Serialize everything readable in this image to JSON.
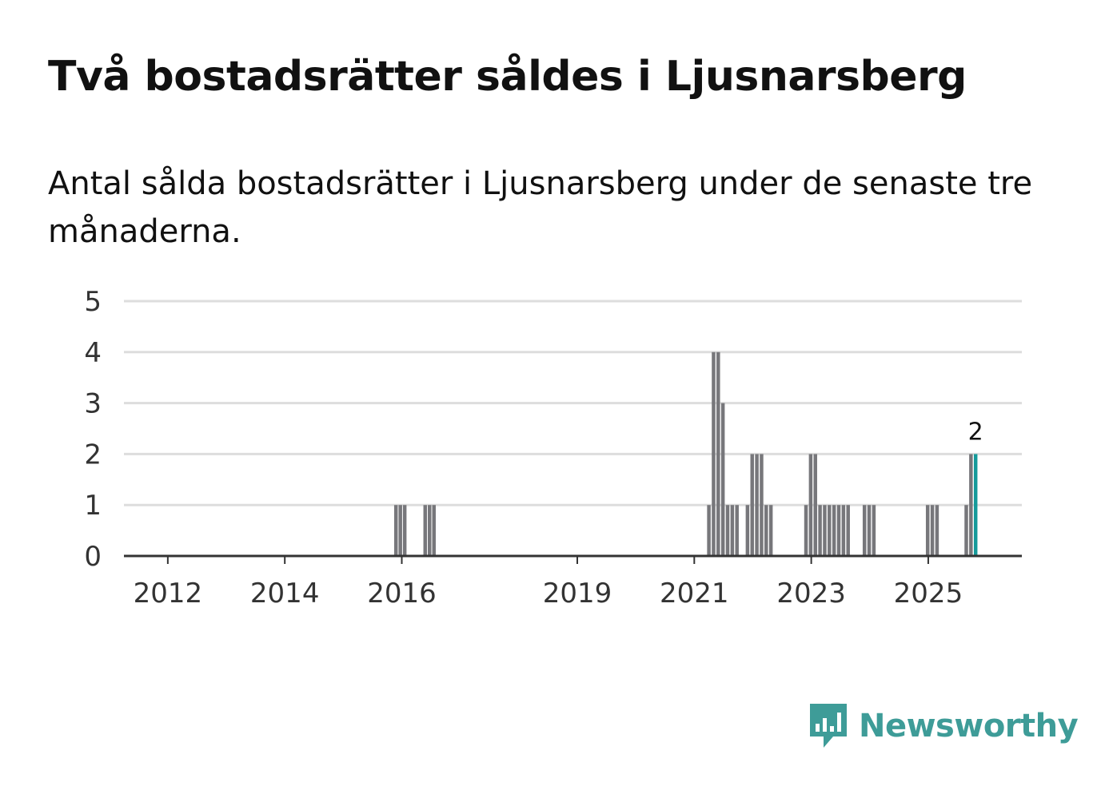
{
  "header": {
    "title": "Två bostadsrätter såldes i Ljusnarsberg",
    "subtitle": "Antal sålda bostadsrätter i Ljusnarsberg under de senaste tre månaderna."
  },
  "brand": {
    "name": "Newsworthy",
    "icon": "bar-chart-speech-bubble-icon",
    "color": "#3e9c98"
  },
  "colors": {
    "bar": "#77777b",
    "highlight": "#159a9a",
    "grid": "#dddddd",
    "axis": "#333333"
  },
  "chart_data": {
    "type": "bar",
    "title": "Två bostadsrätter såldes i Ljusnarsberg",
    "subtitle": "Antal sålda bostadsrätter i Ljusnarsberg under de senaste tre månaderna.",
    "xlabel": "",
    "ylabel": "",
    "ylim": [
      0,
      5
    ],
    "yticks": [
      "0",
      "1",
      "2",
      "3",
      "4",
      "5"
    ],
    "xticks": [
      "2012",
      "2014",
      "2016",
      "2019",
      "2021",
      "2023",
      "2025"
    ],
    "xtick_years": [
      2012,
      2014,
      2016,
      2019,
      2021,
      2023,
      2025
    ],
    "x_range_years": [
      2011.25,
      2026.6
    ],
    "bar_width_years": 0.0833,
    "grid": true,
    "bars": [
      {
        "year": 2015.9,
        "value": 1
      },
      {
        "year": 2015.975,
        "value": 1
      },
      {
        "year": 2016.05,
        "value": 1
      },
      {
        "year": 2016.4,
        "value": 1
      },
      {
        "year": 2016.475,
        "value": 1
      },
      {
        "year": 2016.55,
        "value": 1
      },
      {
        "year": 2021.25,
        "value": 1
      },
      {
        "year": 2021.33,
        "value": 4
      },
      {
        "year": 2021.41,
        "value": 4
      },
      {
        "year": 2021.49,
        "value": 3
      },
      {
        "year": 2021.57,
        "value": 1
      },
      {
        "year": 2021.65,
        "value": 1
      },
      {
        "year": 2021.73,
        "value": 1
      },
      {
        "year": 2021.91,
        "value": 1
      },
      {
        "year": 2021.99,
        "value": 2
      },
      {
        "year": 2022.07,
        "value": 2
      },
      {
        "year": 2022.15,
        "value": 2
      },
      {
        "year": 2022.23,
        "value": 1
      },
      {
        "year": 2022.31,
        "value": 1
      },
      {
        "year": 2022.91,
        "value": 1
      },
      {
        "year": 2022.99,
        "value": 2
      },
      {
        "year": 2023.07,
        "value": 2
      },
      {
        "year": 2023.15,
        "value": 1
      },
      {
        "year": 2023.23,
        "value": 1
      },
      {
        "year": 2023.31,
        "value": 1
      },
      {
        "year": 2023.39,
        "value": 1
      },
      {
        "year": 2023.47,
        "value": 1
      },
      {
        "year": 2023.55,
        "value": 1
      },
      {
        "year": 2023.63,
        "value": 1
      },
      {
        "year": 2023.91,
        "value": 1
      },
      {
        "year": 2023.99,
        "value": 1
      },
      {
        "year": 2024.07,
        "value": 1
      },
      {
        "year": 2024.99,
        "value": 1
      },
      {
        "year": 2025.07,
        "value": 1
      },
      {
        "year": 2025.15,
        "value": 1
      },
      {
        "year": 2025.65,
        "value": 1
      },
      {
        "year": 2025.73,
        "value": 2
      },
      {
        "year": 2025.81,
        "value": 2,
        "highlight": true,
        "label": "2"
      }
    ]
  }
}
